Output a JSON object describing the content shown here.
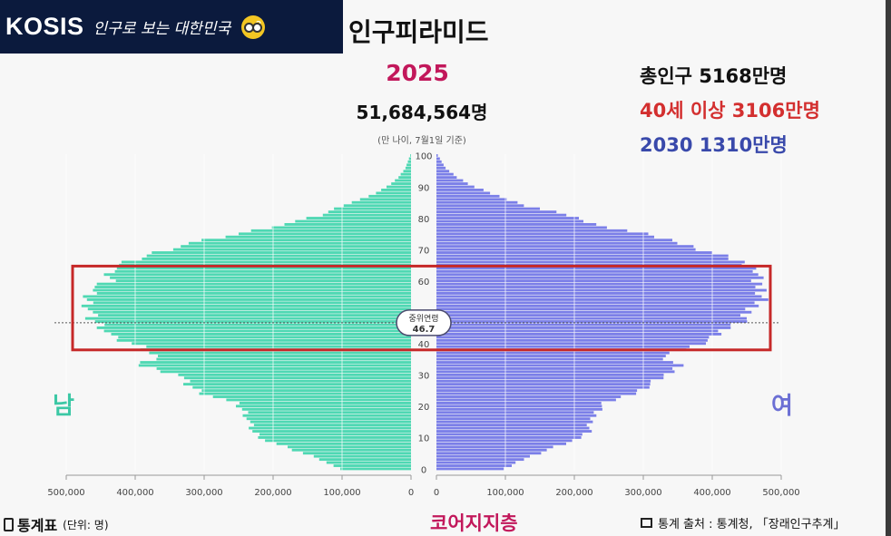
{
  "banner": {
    "brand": "KOSIS",
    "slogan": "인구로 보는 대한민국",
    "icon": "owl-mascot-icon"
  },
  "title": "인구피라미드",
  "year": "2025",
  "total_population": "51,684,564명",
  "basis_note": "(만 나이, 7월1일 기준)",
  "notes": [
    "총인구 5168만명",
    "40세 이상 3106만명",
    "2030 1310만명"
  ],
  "labels": {
    "male": "남",
    "female": "여"
  },
  "median_age": {
    "label": "중위연령",
    "value": "46.7"
  },
  "footer": {
    "left_title": "통계표",
    "left_unit": "(단위: 명)",
    "middle": "코어지지층",
    "right_source": "통계 출처 : 통계청, 「장래인구추계」"
  },
  "colors": {
    "male": "#4fd8b3",
    "female": "#7b7fe8",
    "highlight": "#c62828",
    "accent": "#c2185b"
  },
  "chart_data": {
    "type": "bar",
    "orientation": "horizontal-population-pyramid",
    "y_axis": {
      "label": "age",
      "ticks": [
        0,
        10,
        20,
        30,
        40,
        50,
        60,
        70,
        80,
        90,
        100
      ],
      "range": [
        0,
        100
      ]
    },
    "x_axis": {
      "ticks_male": [
        "500,000",
        "400,000",
        "300,000",
        "200,000",
        "100,000",
        "0"
      ],
      "ticks_female": [
        "0",
        "100,000",
        "200,000",
        "300,000",
        "400,000",
        "500,000"
      ],
      "range": [
        0,
        500000
      ]
    },
    "highlight_age_range": [
      40,
      64
    ],
    "median_age_line": 46.7,
    "series": [
      {
        "name": "남",
        "points": [
          [
            0,
            105000
          ],
          [
            3,
            130000
          ],
          [
            6,
            170000
          ],
          [
            9,
            210000
          ],
          [
            12,
            230000
          ],
          [
            15,
            235000
          ],
          [
            18,
            240000
          ],
          [
            21,
            255000
          ],
          [
            24,
            300000
          ],
          [
            27,
            325000
          ],
          [
            30,
            335000
          ],
          [
            33,
            395000
          ],
          [
            36,
            370000
          ],
          [
            39,
            390000
          ],
          [
            42,
            435000
          ],
          [
            45,
            445000
          ],
          [
            48,
            465000
          ],
          [
            51,
            465000
          ],
          [
            54,
            470000
          ],
          [
            57,
            465000
          ],
          [
            60,
            435000
          ],
          [
            63,
            440000
          ],
          [
            66,
            410000
          ],
          [
            69,
            370000
          ],
          [
            72,
            320000
          ],
          [
            75,
            250000
          ],
          [
            78,
            185000
          ],
          [
            81,
            130000
          ],
          [
            84,
            100000
          ],
          [
            87,
            60000
          ],
          [
            90,
            35000
          ],
          [
            93,
            18000
          ],
          [
            96,
            8000
          ],
          [
            99,
            3000
          ],
          [
            100,
            1000
          ]
        ]
      },
      {
        "name": "여",
        "points": [
          [
            0,
            100000
          ],
          [
            3,
            125000
          ],
          [
            6,
            160000
          ],
          [
            9,
            200000
          ],
          [
            12,
            220000
          ],
          [
            15,
            225000
          ],
          [
            18,
            230000
          ],
          [
            21,
            245000
          ],
          [
            24,
            285000
          ],
          [
            27,
            310000
          ],
          [
            30,
            335000
          ],
          [
            33,
            350000
          ],
          [
            36,
            330000
          ],
          [
            39,
            370000
          ],
          [
            42,
            405000
          ],
          [
            45,
            420000
          ],
          [
            48,
            450000
          ],
          [
            51,
            455000
          ],
          [
            54,
            470000
          ],
          [
            57,
            475000
          ],
          [
            60,
            460000
          ],
          [
            63,
            470000
          ],
          [
            66,
            440000
          ],
          [
            69,
            400000
          ],
          [
            72,
            355000
          ],
          [
            75,
            300000
          ],
          [
            78,
            230000
          ],
          [
            81,
            190000
          ],
          [
            84,
            130000
          ],
          [
            87,
            90000
          ],
          [
            90,
            55000
          ],
          [
            93,
            30000
          ],
          [
            96,
            13000
          ],
          [
            99,
            5000
          ],
          [
            100,
            2000
          ]
        ]
      }
    ]
  }
}
